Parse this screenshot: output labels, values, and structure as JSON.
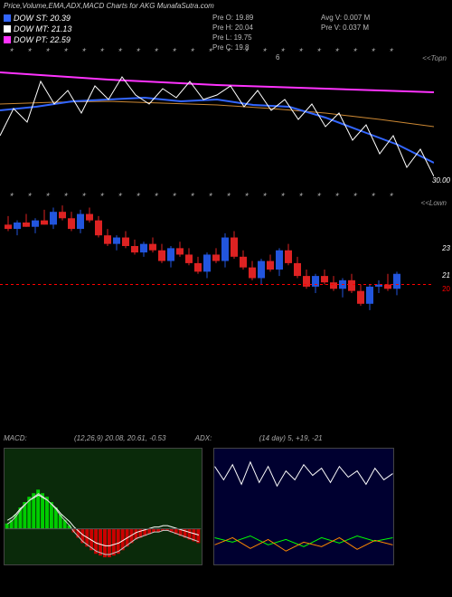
{
  "title": "Price,Volume,EMA,ADX,MACD Charts for AKG MunafaSutra.com",
  "legend": [
    {
      "color": "#3366ff",
      "label": "DOW ST: 20.39"
    },
    {
      "color": "#ffffff",
      "label": "DOW MT: 21.13"
    },
    {
      "color": "#ff33ff",
      "label": "DOW PT: 22.59"
    }
  ],
  "info_center": [
    "Pre   O: 19.89",
    "Pre   H: 20.04",
    "Pre   L: 19.75",
    "Pre   C: 19.8"
  ],
  "info_right": [
    "Avg V: 0.007 M",
    "Pre   V: 0.037 M"
  ],
  "info_extra": "6",
  "top_chart": {
    "corner_top": "<<Topn",
    "corner_bottom": "30.00",
    "lines": {
      "magenta": {
        "color": "#ff33ff",
        "points": [
          [
            0,
            20
          ],
          [
            60,
            24
          ],
          [
            120,
            28
          ],
          [
            180,
            31
          ],
          [
            240,
            34
          ],
          [
            300,
            36
          ],
          [
            360,
            38
          ],
          [
            420,
            40
          ],
          [
            480,
            42
          ]
        ]
      },
      "orange": {
        "color": "#cc8833",
        "points": [
          [
            0,
            55
          ],
          [
            60,
            53
          ],
          [
            120,
            52
          ],
          [
            180,
            54
          ],
          [
            240,
            56
          ],
          [
            300,
            60
          ],
          [
            360,
            65
          ],
          [
            420,
            72
          ],
          [
            480,
            80
          ]
        ]
      },
      "blue": {
        "color": "#3366ff",
        "points": [
          [
            0,
            62
          ],
          [
            40,
            58
          ],
          [
            80,
            52
          ],
          [
            120,
            50
          ],
          [
            160,
            48
          ],
          [
            200,
            52
          ],
          [
            240,
            50
          ],
          [
            280,
            56
          ],
          [
            320,
            58
          ],
          [
            360,
            70
          ],
          [
            400,
            85
          ],
          [
            440,
            100
          ],
          [
            480,
            120
          ]
        ]
      },
      "white": {
        "color": "#ffffff",
        "points": [
          [
            0,
            90
          ],
          [
            15,
            60
          ],
          [
            30,
            75
          ],
          [
            45,
            30
          ],
          [
            60,
            55
          ],
          [
            75,
            40
          ],
          [
            90,
            65
          ],
          [
            105,
            35
          ],
          [
            120,
            50
          ],
          [
            135,
            25
          ],
          [
            150,
            45
          ],
          [
            165,
            55
          ],
          [
            180,
            38
          ],
          [
            195,
            48
          ],
          [
            210,
            30
          ],
          [
            225,
            50
          ],
          [
            240,
            45
          ],
          [
            255,
            35
          ],
          [
            270,
            58
          ],
          [
            285,
            40
          ],
          [
            300,
            62
          ],
          [
            315,
            50
          ],
          [
            330,
            72
          ],
          [
            345,
            55
          ],
          [
            360,
            80
          ],
          [
            375,
            65
          ],
          [
            390,
            95
          ],
          [
            405,
            78
          ],
          [
            420,
            110
          ],
          [
            435,
            90
          ],
          [
            450,
            125
          ],
          [
            465,
            105
          ],
          [
            480,
            135
          ]
        ]
      }
    }
  },
  "candle_chart": {
    "corner": "<<Lown",
    "ylabels": [
      {
        "y": 50,
        "text": "23",
        "color": "#fff"
      },
      {
        "y": 80,
        "text": "21",
        "color": "#fff"
      },
      {
        "y": 95,
        "text": "20",
        "color": "#f00"
      }
    ],
    "width": 8,
    "gap": 2,
    "candles": [
      {
        "o": 22.8,
        "h": 23.2,
        "l": 22.5,
        "c": 22.6,
        "up": false
      },
      {
        "o": 22.6,
        "h": 23.0,
        "l": 22.3,
        "c": 22.9,
        "up": true
      },
      {
        "o": 22.9,
        "h": 23.3,
        "l": 22.7,
        "c": 22.7,
        "up": false
      },
      {
        "o": 22.7,
        "h": 23.1,
        "l": 22.4,
        "c": 23.0,
        "up": true
      },
      {
        "o": 23.0,
        "h": 23.5,
        "l": 22.8,
        "c": 22.8,
        "up": false
      },
      {
        "o": 22.8,
        "h": 23.6,
        "l": 22.6,
        "c": 23.4,
        "up": true
      },
      {
        "o": 23.4,
        "h": 23.7,
        "l": 23.0,
        "c": 23.1,
        "up": false
      },
      {
        "o": 23.1,
        "h": 23.4,
        "l": 22.5,
        "c": 22.6,
        "up": false
      },
      {
        "o": 22.6,
        "h": 23.5,
        "l": 22.4,
        "c": 23.3,
        "up": true
      },
      {
        "o": 23.3,
        "h": 23.6,
        "l": 22.9,
        "c": 23.0,
        "up": false
      },
      {
        "o": 23.0,
        "h": 23.2,
        "l": 22.2,
        "c": 22.3,
        "up": false
      },
      {
        "o": 22.3,
        "h": 22.6,
        "l": 21.8,
        "c": 21.9,
        "up": false
      },
      {
        "o": 21.9,
        "h": 22.3,
        "l": 21.6,
        "c": 22.2,
        "up": true
      },
      {
        "o": 22.2,
        "h": 22.5,
        "l": 21.7,
        "c": 21.8,
        "up": false
      },
      {
        "o": 21.8,
        "h": 22.1,
        "l": 21.4,
        "c": 21.5,
        "up": false
      },
      {
        "o": 21.5,
        "h": 22.0,
        "l": 21.3,
        "c": 21.9,
        "up": true
      },
      {
        "o": 21.9,
        "h": 22.2,
        "l": 21.5,
        "c": 21.6,
        "up": false
      },
      {
        "o": 21.6,
        "h": 21.9,
        "l": 21.0,
        "c": 21.1,
        "up": false
      },
      {
        "o": 21.1,
        "h": 21.8,
        "l": 20.8,
        "c": 21.7,
        "up": true
      },
      {
        "o": 21.7,
        "h": 22.0,
        "l": 21.3,
        "c": 21.4,
        "up": false
      },
      {
        "o": 21.4,
        "h": 21.7,
        "l": 20.9,
        "c": 21.0,
        "up": false
      },
      {
        "o": 21.0,
        "h": 21.3,
        "l": 20.5,
        "c": 20.6,
        "up": false
      },
      {
        "o": 20.6,
        "h": 21.5,
        "l": 20.3,
        "c": 21.4,
        "up": true
      },
      {
        "o": 21.4,
        "h": 21.7,
        "l": 21.0,
        "c": 21.1,
        "up": false
      },
      {
        "o": 21.1,
        "h": 22.4,
        "l": 20.8,
        "c": 22.2,
        "up": true
      },
      {
        "o": 22.2,
        "h": 22.5,
        "l": 21.2,
        "c": 21.3,
        "up": false
      },
      {
        "o": 21.3,
        "h": 21.6,
        "l": 20.7,
        "c": 20.8,
        "up": false
      },
      {
        "o": 20.8,
        "h": 21.1,
        "l": 20.2,
        "c": 20.3,
        "up": false
      },
      {
        "o": 20.3,
        "h": 21.2,
        "l": 20.0,
        "c": 21.1,
        "up": true
      },
      {
        "o": 21.1,
        "h": 21.4,
        "l": 20.6,
        "c": 20.7,
        "up": false
      },
      {
        "o": 20.7,
        "h": 21.7,
        "l": 20.4,
        "c": 21.6,
        "up": true
      },
      {
        "o": 21.6,
        "h": 21.9,
        "l": 20.9,
        "c": 21.0,
        "up": false
      },
      {
        "o": 21.0,
        "h": 21.3,
        "l": 20.3,
        "c": 20.4,
        "up": false
      },
      {
        "o": 20.4,
        "h": 20.7,
        "l": 19.8,
        "c": 19.9,
        "up": false
      },
      {
        "o": 19.9,
        "h": 20.5,
        "l": 19.6,
        "c": 20.4,
        "up": true
      },
      {
        "o": 20.4,
        "h": 20.7,
        "l": 20.0,
        "c": 20.1,
        "up": false
      },
      {
        "o": 20.1,
        "h": 20.4,
        "l": 19.7,
        "c": 19.8,
        "up": false
      },
      {
        "o": 19.8,
        "h": 20.3,
        "l": 19.4,
        "c": 20.2,
        "up": true
      },
      {
        "o": 20.2,
        "h": 20.5,
        "l": 19.6,
        "c": 19.7,
        "up": false
      },
      {
        "o": 19.7,
        "h": 20.0,
        "l": 19.0,
        "c": 19.1,
        "up": false
      },
      {
        "o": 19.1,
        "h": 20.0,
        "l": 18.8,
        "c": 19.9,
        "up": true
      },
      {
        "o": 19.9,
        "h": 20.2,
        "l": 19.6,
        "c": 20.0,
        "up": true
      },
      {
        "o": 20.0,
        "h": 20.5,
        "l": 19.7,
        "c": 19.8,
        "up": false
      },
      {
        "o": 19.8,
        "h": 20.6,
        "l": 19.5,
        "c": 20.5,
        "up": true
      }
    ],
    "ymin": 18.5,
    "ymax": 24.0
  },
  "macd": {
    "label": "MACD:",
    "params": "(12,26,9) 20.08, 20.61, -0.53",
    "bars": [
      3,
      5,
      8,
      12,
      15,
      18,
      20,
      22,
      20,
      18,
      15,
      12,
      8,
      5,
      2,
      -2,
      -5,
      -8,
      -10,
      -12,
      -14,
      -15,
      -16,
      -16,
      -15,
      -14,
      -12,
      -10,
      -8,
      -6,
      -5,
      -4,
      -3,
      -2,
      -2,
      -1,
      -1,
      -2,
      -3,
      -4,
      -5,
      -6,
      -7,
      -8
    ],
    "signal_color": "#ffffff",
    "macd_color": "#cccccc"
  },
  "adx": {
    "label": "ADX:",
    "params": "(14   day) 5, +19, -21",
    "adx_line": {
      "color": "#ffffff",
      "points": [
        [
          0,
          20
        ],
        [
          10,
          35
        ],
        [
          20,
          18
        ],
        [
          30,
          40
        ],
        [
          40,
          15
        ],
        [
          50,
          38
        ],
        [
          60,
          20
        ],
        [
          70,
          42
        ],
        [
          80,
          25
        ],
        [
          90,
          35
        ],
        [
          100,
          18
        ],
        [
          110,
          30
        ],
        [
          120,
          22
        ],
        [
          130,
          38
        ],
        [
          140,
          20
        ],
        [
          150,
          32
        ],
        [
          160,
          25
        ],
        [
          170,
          40
        ],
        [
          180,
          22
        ],
        [
          190,
          35
        ],
        [
          200,
          28
        ]
      ]
    },
    "plus_di": {
      "color": "#00ff00",
      "points": [
        [
          0,
          100
        ],
        [
          20,
          105
        ],
        [
          40,
          98
        ],
        [
          60,
          108
        ],
        [
          80,
          102
        ],
        [
          100,
          110
        ],
        [
          120,
          100
        ],
        [
          140,
          106
        ],
        [
          160,
          98
        ],
        [
          180,
          104
        ],
        [
          200,
          100
        ]
      ]
    },
    "minus_di": {
      "color": "#ff8800",
      "points": [
        [
          0,
          108
        ],
        [
          20,
          100
        ],
        [
          40,
          112
        ],
        [
          60,
          102
        ],
        [
          80,
          115
        ],
        [
          100,
          105
        ],
        [
          120,
          110
        ],
        [
          140,
          100
        ],
        [
          160,
          113
        ],
        [
          180,
          103
        ],
        [
          200,
          108
        ]
      ]
    }
  }
}
